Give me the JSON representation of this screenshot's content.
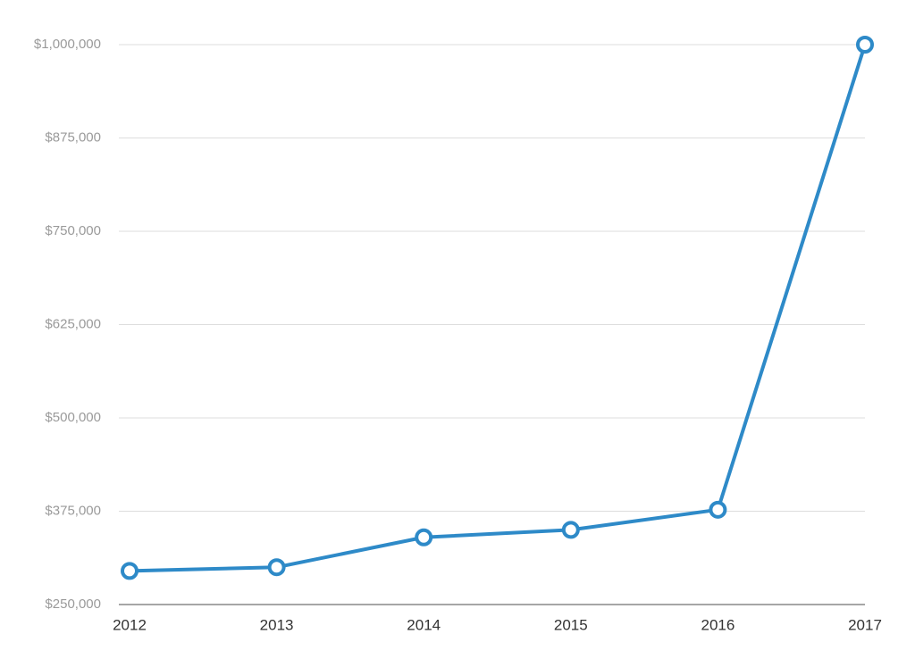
{
  "chart_data": {
    "type": "line",
    "categories": [
      "2012",
      "2013",
      "2014",
      "2015",
      "2016",
      "2017"
    ],
    "series": [
      {
        "color": "#2e8ac8",
        "values": [
          295000,
          300000,
          340000,
          350000,
          377000,
          1000000
        ]
      }
    ],
    "ylim": [
      250000,
      1000000
    ],
    "yticks": [
      {
        "value": 250000,
        "label": "$250,000"
      },
      {
        "value": 375000,
        "label": "$375,000"
      },
      {
        "value": 500000,
        "label": "$500,000"
      },
      {
        "value": 625000,
        "label": "$625,000"
      },
      {
        "value": 750000,
        "label": "$750,000"
      },
      {
        "value": 875000,
        "label": "$875,000"
      },
      {
        "value": 1000000,
        "label": "$1,000,000"
      }
    ],
    "grid": true
  }
}
